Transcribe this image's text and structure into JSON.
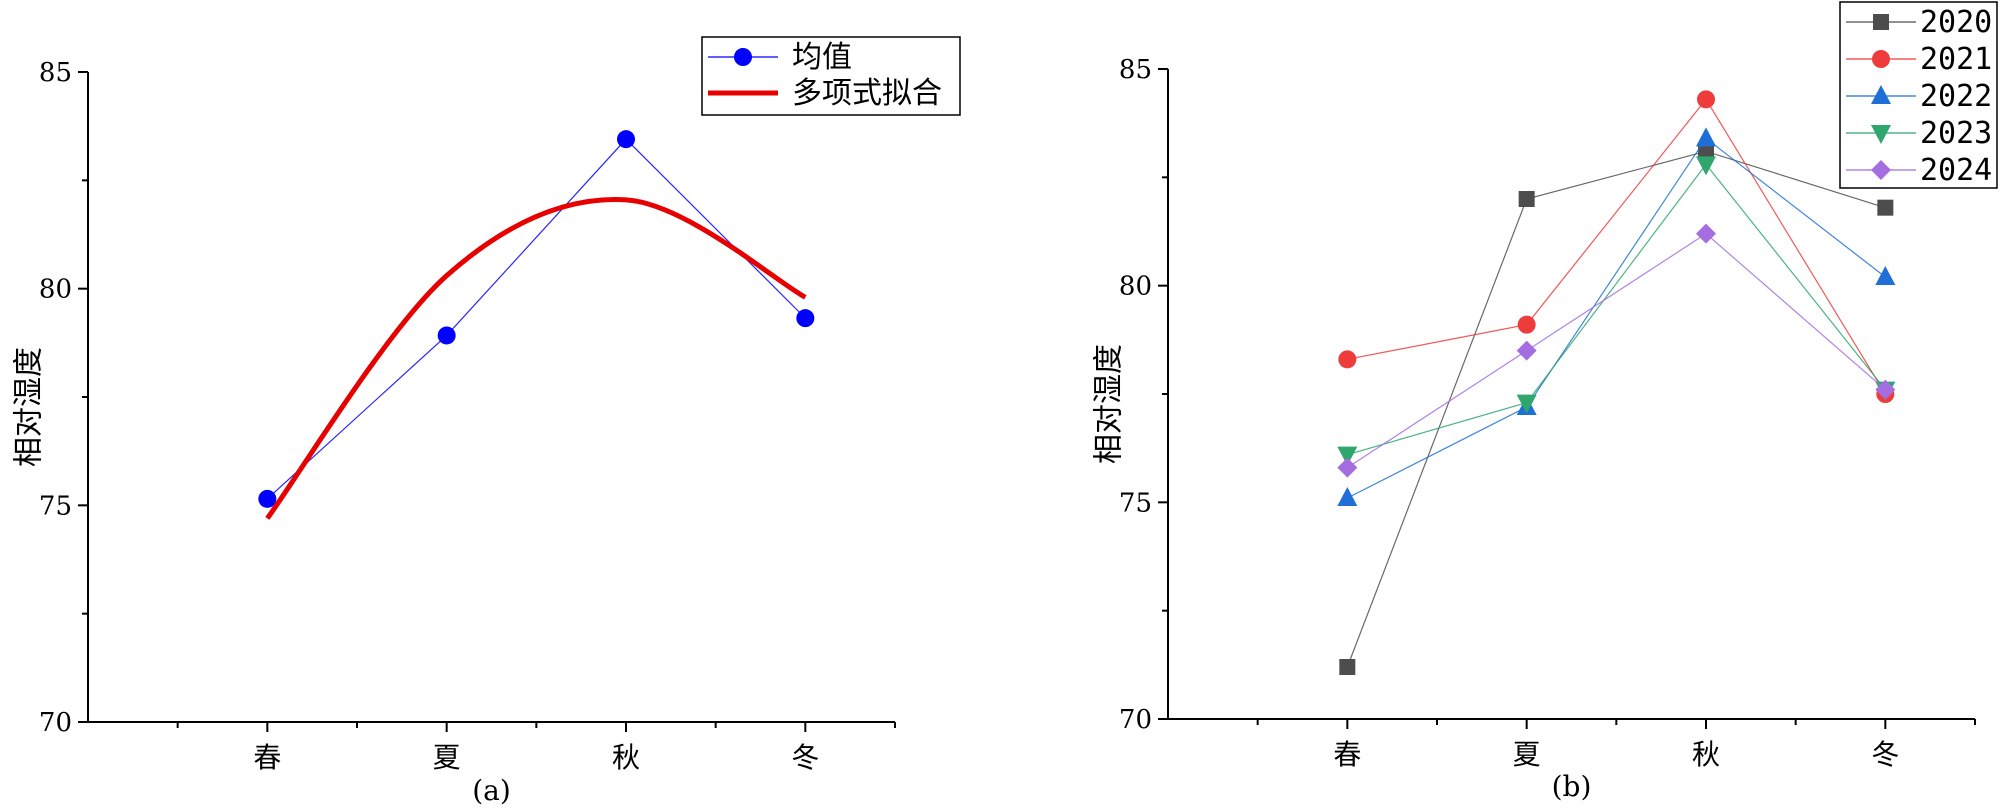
{
  "chart_data": [
    {
      "type": "line",
      "categories": [
        "春",
        "夏",
        "秋",
        "冬"
      ],
      "ylabel": "相对湿度",
      "ylim": [
        70,
        85
      ],
      "yticks": [
        70,
        75,
        80,
        85
      ],
      "caption": "(a)",
      "legend_position": "top-right",
      "series": [
        {
          "name": "均值",
          "values": [
            75.15,
            78.92,
            83.45,
            79.32
          ],
          "color": "#0000ff",
          "marker": "circle"
        },
        {
          "name": "多项式拟合",
          "fit_values": [
            74.7,
            80.3,
            82.05,
            79.8
          ],
          "color": "#e60000",
          "style": "thick-line"
        }
      ]
    },
    {
      "type": "line",
      "categories": [
        "春",
        "夏",
        "秋",
        "冬"
      ],
      "ylabel": "相对湿度",
      "ylim": [
        70,
        85
      ],
      "yticks": [
        70,
        75,
        80,
        85
      ],
      "caption": "(b)",
      "legend_position": "top-right",
      "series": [
        {
          "name": "2020",
          "values": [
            71.2,
            82.0,
            83.1,
            81.8
          ],
          "color": "#4d4d4d",
          "marker": "square"
        },
        {
          "name": "2021",
          "values": [
            78.3,
            79.1,
            84.3,
            77.5
          ],
          "color": "#ee3b3b",
          "marker": "circle"
        },
        {
          "name": "2022",
          "values": [
            75.1,
            77.2,
            83.4,
            80.2
          ],
          "color": "#1f6fd6",
          "marker": "triangle-up"
        },
        {
          "name": "2023",
          "values": [
            76.1,
            77.3,
            82.8,
            77.6
          ],
          "color": "#2ea66e",
          "marker": "triangle-down"
        },
        {
          "name": "2024",
          "values": [
            75.8,
            78.5,
            81.2,
            77.6
          ],
          "color": "#a56ee0",
          "marker": "diamond"
        }
      ]
    }
  ]
}
